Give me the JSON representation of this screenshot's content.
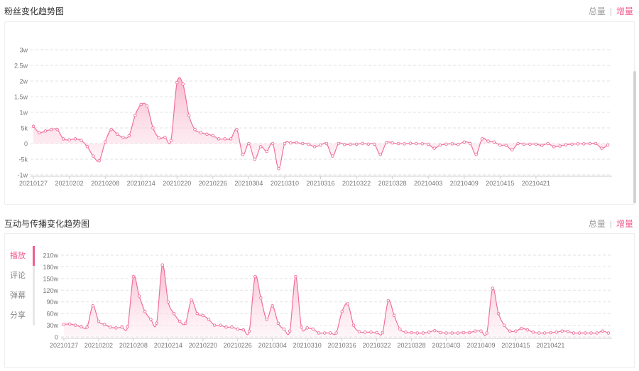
{
  "colors": {
    "accent": "#f25d8e",
    "line": "#f0709a",
    "area": "#f8b2c8"
  },
  "fans_section": {
    "title": "粉丝变化趋势图",
    "toggle": {
      "total_label": "总量",
      "separator": "|",
      "increment_label": "增量",
      "active": "increment"
    }
  },
  "engagement_section": {
    "title": "互动与传播变化趋势图",
    "toggle": {
      "total_label": "总量",
      "separator": "|",
      "increment_label": "增量",
      "active": "increment"
    },
    "tabs": [
      {
        "label": "播放",
        "active": true
      },
      {
        "label": "评论",
        "active": false
      },
      {
        "label": "弹幕",
        "active": false
      },
      {
        "label": "分享",
        "active": false
      }
    ]
  },
  "chart_data": [
    {
      "type": "area",
      "title": "粉丝变化趋势图",
      "x_tick_labels": [
        "20210127",
        "20210202",
        "20210208",
        "20210214",
        "20210220",
        "20210226",
        "20210304",
        "20210310",
        "20210316",
        "20210322",
        "20210328",
        "20210403",
        "20210409",
        "20210415",
        "20210421"
      ],
      "y_tick_labels": [
        "-1w",
        "-5k",
        "0",
        "5k",
        "1w",
        "1.5w",
        "2w",
        "2.5w",
        "3w"
      ],
      "ylim": [
        -10000,
        30000
      ],
      "grid": true,
      "start_date": "20210127",
      "values": [
        5500,
        3500,
        4000,
        4500,
        4500,
        1500,
        1200,
        1500,
        1000,
        -1000,
        -4000,
        -5500,
        500,
        4500,
        3000,
        2000,
        2500,
        9000,
        12500,
        12000,
        5000,
        1800,
        2000,
        1000,
        19500,
        19000,
        9000,
        4500,
        3500,
        3000,
        2500,
        1500,
        1500,
        1500,
        4500,
        -3500,
        0,
        -5000,
        -1000,
        -2500,
        0,
        -8000,
        0,
        200,
        300,
        0,
        -200,
        -1000,
        -500,
        0,
        -4000,
        0,
        -300,
        -200,
        -200,
        0,
        -200,
        -200,
        -3500,
        300,
        200,
        0,
        -100,
        100,
        0,
        -100,
        -200,
        -1500,
        -500,
        -200,
        -100,
        -300,
        500,
        0,
        -3500,
        1500,
        800,
        500,
        -500,
        -600,
        -2000,
        0,
        -200,
        -200,
        -200,
        -600,
        0,
        -1000,
        -800,
        -400,
        -200,
        -100,
        -100,
        0,
        0,
        -1500,
        -500
      ]
    },
    {
      "type": "area",
      "title": "互动与传播变化趋势图",
      "series_label": "播放",
      "x_tick_labels": [
        "20210127",
        "20210202",
        "20210208",
        "20210214",
        "20210220",
        "20210226",
        "20210304",
        "20210310",
        "20210316",
        "20210322",
        "20210328",
        "20210403",
        "20210409",
        "20210415",
        "20210421"
      ],
      "y_tick_labels": [
        "0",
        "30w",
        "60w",
        "90w",
        "120w",
        "150w",
        "180w",
        "210w"
      ],
      "ylim": [
        0,
        2100000
      ],
      "grid": true,
      "start_date": "20210127",
      "values": [
        320000,
        330000,
        300000,
        260000,
        250000,
        800000,
        400000,
        320000,
        250000,
        230000,
        250000,
        260000,
        1550000,
        1050000,
        650000,
        450000,
        350000,
        1850000,
        900000,
        600000,
        400000,
        350000,
        950000,
        600000,
        550000,
        450000,
        300000,
        300000,
        250000,
        250000,
        200000,
        180000,
        150000,
        1550000,
        1000000,
        450000,
        800000,
        350000,
        200000,
        150000,
        1550000,
        250000,
        230000,
        200000,
        100000,
        100000,
        100000,
        100000,
        650000,
        850000,
        300000,
        130000,
        120000,
        120000,
        110000,
        110000,
        930000,
        550000,
        200000,
        120000,
        110000,
        100000,
        100000,
        120000,
        160000,
        110000,
        100000,
        100000,
        100000,
        110000,
        110000,
        150000,
        150000,
        100000,
        1250000,
        600000,
        300000,
        150000,
        150000,
        220000,
        180000,
        120000,
        100000,
        100000,
        110000,
        120000,
        150000,
        140000,
        100000,
        100000,
        100000,
        100000,
        100000,
        150000,
        100000
      ]
    }
  ]
}
